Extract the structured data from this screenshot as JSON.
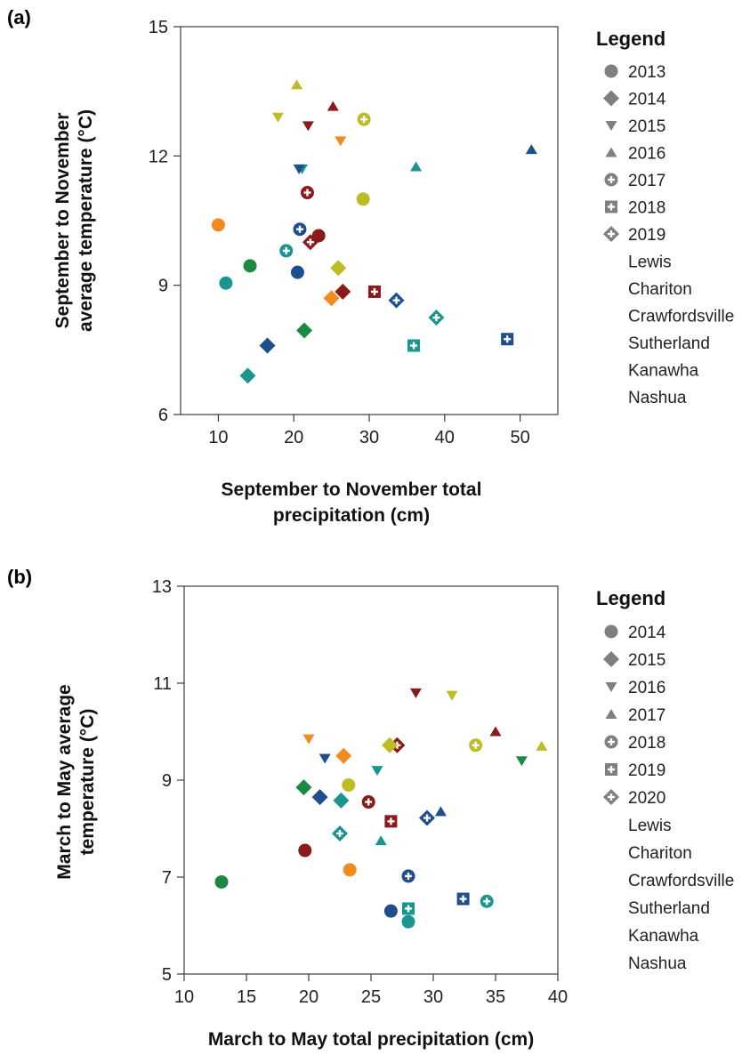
{
  "colors": {
    "Lewis": "#8b1a1a",
    "Chariton": "#f28a1e",
    "Crawfordsville": "#bdbc27",
    "Sutherland": "#1a8a43",
    "Kanawha": "#1b9590",
    "Nashua": "#1f4e8c",
    "legend_marker": "#7f7f7f"
  },
  "chart_data": [
    {
      "panel_label": "(a)",
      "type": "scatter",
      "xlabel": [
        "September to November total",
        "precipitation (cm)"
      ],
      "ylabel": [
        "September to November",
        "average temperature (°C)"
      ],
      "xlim": [
        5,
        55
      ],
      "ylim": [
        6,
        15
      ],
      "xticks": [
        10,
        20,
        30,
        40,
        50
      ],
      "yticks": [
        6,
        9,
        12,
        15
      ],
      "grid": false,
      "legend_title": "Legend",
      "legend_placement": "right",
      "year_legend": [
        {
          "label": "2013",
          "marker": "circle"
        },
        {
          "label": "2014",
          "marker": "diamond"
        },
        {
          "label": "2015",
          "marker": "triangle-down"
        },
        {
          "label": "2016",
          "marker": "triangle-up"
        },
        {
          "label": "2017",
          "marker": "circle-plus"
        },
        {
          "label": "2018",
          "marker": "square-plus"
        },
        {
          "label": "2019",
          "marker": "diamond-plus"
        }
      ],
      "site_legend": [
        "Lewis",
        "Chariton",
        "Crawfordsville",
        "Sutherland",
        "Kanawha",
        "Nashua"
      ],
      "points": [
        {
          "site": "Lewis",
          "marker": "circle",
          "x": 23.3,
          "y": 10.15
        },
        {
          "site": "Lewis",
          "marker": "diamond",
          "x": 26.5,
          "y": 8.85
        },
        {
          "site": "Lewis",
          "marker": "triangle-down",
          "x": 21.9,
          "y": 12.7
        },
        {
          "site": "Lewis",
          "marker": "triangle-up",
          "x": 25.2,
          "y": 13.15
        },
        {
          "site": "Lewis",
          "marker": "circle-plus",
          "x": 21.8,
          "y": 11.15
        },
        {
          "site": "Lewis",
          "marker": "square-plus",
          "x": 30.7,
          "y": 8.85
        },
        {
          "site": "Lewis",
          "marker": "diamond-plus",
          "x": 22.2,
          "y": 10.0
        },
        {
          "site": "Chariton",
          "marker": "circle",
          "x": 10.0,
          "y": 10.4
        },
        {
          "site": "Chariton",
          "marker": "diamond",
          "x": 25.0,
          "y": 8.7
        },
        {
          "site": "Chariton",
          "marker": "triangle-down",
          "x": 26.2,
          "y": 12.35
        },
        {
          "site": "Crawfordsville",
          "marker": "diamond",
          "x": 25.9,
          "y": 9.4
        },
        {
          "site": "Crawfordsville",
          "marker": "triangle-down",
          "x": 17.9,
          "y": 12.9
        },
        {
          "site": "Crawfordsville",
          "marker": "triangle-up",
          "x": 20.4,
          "y": 13.65
        },
        {
          "site": "Crawfordsville",
          "marker": "circle-plus",
          "x": 29.3,
          "y": 12.85
        },
        {
          "site": "Crawfordsville",
          "marker": "circle",
          "x": 29.2,
          "y": 11.0
        },
        {
          "site": "Sutherland",
          "marker": "circle",
          "x": 14.2,
          "y": 9.45
        },
        {
          "site": "Sutherland",
          "marker": "diamond",
          "x": 21.4,
          "y": 7.95
        },
        {
          "site": "Kanawha",
          "marker": "circle",
          "x": 11.0,
          "y": 9.05
        },
        {
          "site": "Kanawha",
          "marker": "diamond",
          "x": 13.9,
          "y": 6.9
        },
        {
          "site": "Kanawha",
          "marker": "triangle-down",
          "x": 21.1,
          "y": 11.7
        },
        {
          "site": "Kanawha",
          "marker": "triangle-up",
          "x": 36.2,
          "y": 11.75
        },
        {
          "site": "Kanawha",
          "marker": "circle-plus",
          "x": 19.0,
          "y": 9.8
        },
        {
          "site": "Kanawha",
          "marker": "square-plus",
          "x": 35.9,
          "y": 7.6
        },
        {
          "site": "Kanawha",
          "marker": "diamond-plus",
          "x": 38.9,
          "y": 8.25
        },
        {
          "site": "Nashua",
          "marker": "circle",
          "x": 20.5,
          "y": 9.3
        },
        {
          "site": "Nashua",
          "marker": "diamond",
          "x": 16.5,
          "y": 7.6
        },
        {
          "site": "Nashua",
          "marker": "triangle-down",
          "x": 20.7,
          "y": 11.7
        },
        {
          "site": "Nashua",
          "marker": "triangle-up",
          "x": 51.5,
          "y": 12.15
        },
        {
          "site": "Nashua",
          "marker": "circle-plus",
          "x": 20.8,
          "y": 10.3
        },
        {
          "site": "Nashua",
          "marker": "square-plus",
          "x": 48.3,
          "y": 7.75
        },
        {
          "site": "Nashua",
          "marker": "diamond-plus",
          "x": 33.6,
          "y": 8.65
        }
      ]
    },
    {
      "panel_label": "(b)",
      "type": "scatter",
      "xlabel": [
        "March to May total precipitation (cm)"
      ],
      "ylabel": [
        "March to May average",
        "temperature (°C)"
      ],
      "xlim": [
        10,
        40
      ],
      "ylim": [
        5,
        13
      ],
      "xticks": [
        10,
        15,
        20,
        25,
        30,
        35,
        40
      ],
      "yticks": [
        5,
        7,
        9,
        11,
        13
      ],
      "grid": false,
      "legend_title": "Legend",
      "legend_placement": "right",
      "year_legend": [
        {
          "label": "2014",
          "marker": "circle"
        },
        {
          "label": "2015",
          "marker": "diamond"
        },
        {
          "label": "2016",
          "marker": "triangle-down"
        },
        {
          "label": "2017",
          "marker": "triangle-up"
        },
        {
          "label": "2018",
          "marker": "circle-plus"
        },
        {
          "label": "2019",
          "marker": "square-plus"
        },
        {
          "label": "2020",
          "marker": "diamond-plus"
        }
      ],
      "site_legend": [
        "Lewis",
        "Chariton",
        "Crawfordsville",
        "Sutherland",
        "Kanawha",
        "Nashua"
      ],
      "points": [
        {
          "site": "Lewis",
          "marker": "circle",
          "x": 19.7,
          "y": 7.55
        },
        {
          "site": "Lewis",
          "marker": "triangle-down",
          "x": 28.6,
          "y": 10.8
        },
        {
          "site": "Lewis",
          "marker": "triangle-up",
          "x": 35.0,
          "y": 10.0
        },
        {
          "site": "Lewis",
          "marker": "circle-plus",
          "x": 24.8,
          "y": 8.55
        },
        {
          "site": "Lewis",
          "marker": "square-plus",
          "x": 26.6,
          "y": 8.15
        },
        {
          "site": "Lewis",
          "marker": "diamond-plus",
          "x": 27.1,
          "y": 9.72
        },
        {
          "site": "Chariton",
          "marker": "circle",
          "x": 23.3,
          "y": 7.15
        },
        {
          "site": "Chariton",
          "marker": "diamond",
          "x": 22.8,
          "y": 9.5
        },
        {
          "site": "Chariton",
          "marker": "triangle-down",
          "x": 20.0,
          "y": 9.85
        },
        {
          "site": "Crawfordsville",
          "marker": "circle",
          "x": 23.2,
          "y": 8.9
        },
        {
          "site": "Crawfordsville",
          "marker": "diamond",
          "x": 26.5,
          "y": 9.72
        },
        {
          "site": "Crawfordsville",
          "marker": "triangle-down",
          "x": 31.5,
          "y": 10.75
        },
        {
          "site": "Crawfordsville",
          "marker": "triangle-up",
          "x": 38.7,
          "y": 9.7
        },
        {
          "site": "Crawfordsville",
          "marker": "circle-plus",
          "x": 33.4,
          "y": 9.72
        },
        {
          "site": "Sutherland",
          "marker": "circle",
          "x": 13.0,
          "y": 6.9
        },
        {
          "site": "Sutherland",
          "marker": "diamond",
          "x": 19.6,
          "y": 8.85
        },
        {
          "site": "Sutherland",
          "marker": "triangle-down",
          "x": 37.1,
          "y": 9.4
        },
        {
          "site": "Kanawha",
          "marker": "circle",
          "x": 28.0,
          "y": 6.08
        },
        {
          "site": "Kanawha",
          "marker": "diamond",
          "x": 22.6,
          "y": 8.58
        },
        {
          "site": "Kanawha",
          "marker": "triangle-down",
          "x": 25.5,
          "y": 9.2
        },
        {
          "site": "Kanawha",
          "marker": "triangle-up",
          "x": 25.8,
          "y": 7.75
        },
        {
          "site": "Kanawha",
          "marker": "circle-plus",
          "x": 34.3,
          "y": 6.5
        },
        {
          "site": "Kanawha",
          "marker": "square-plus",
          "x": 28.0,
          "y": 6.35
        },
        {
          "site": "Kanawha",
          "marker": "diamond-plus",
          "x": 22.5,
          "y": 7.9
        },
        {
          "site": "Nashua",
          "marker": "circle",
          "x": 26.6,
          "y": 6.3
        },
        {
          "site": "Nashua",
          "marker": "diamond",
          "x": 20.9,
          "y": 8.65
        },
        {
          "site": "Nashua",
          "marker": "triangle-down",
          "x": 21.3,
          "y": 9.45
        },
        {
          "site": "Nashua",
          "marker": "triangle-up",
          "x": 30.6,
          "y": 8.35
        },
        {
          "site": "Nashua",
          "marker": "circle-plus",
          "x": 28.0,
          "y": 7.02
        },
        {
          "site": "Nashua",
          "marker": "square-plus",
          "x": 32.4,
          "y": 6.55
        },
        {
          "site": "Nashua",
          "marker": "diamond-plus",
          "x": 29.5,
          "y": 8.22
        }
      ]
    }
  ]
}
